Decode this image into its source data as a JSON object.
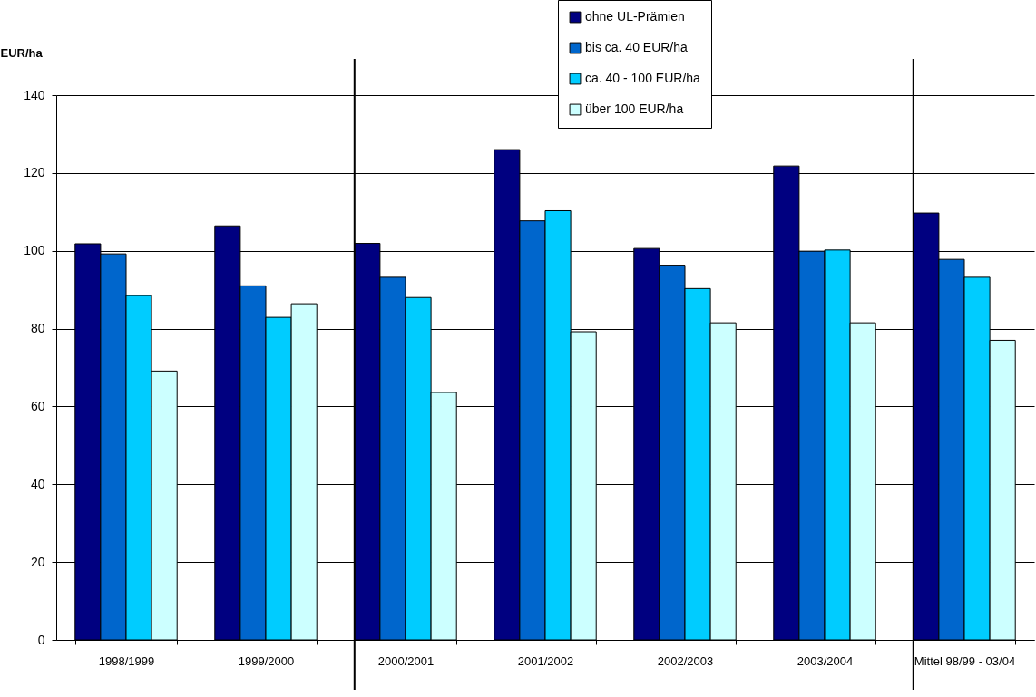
{
  "chart_data": {
    "type": "bar",
    "ylabel": "EUR/ha",
    "categories": [
      "1998/1999",
      "1999/2000",
      "2000/2001",
      "2001/2002",
      "2002/2003",
      "2003/2004",
      "Mittel 98/99 - 03/04"
    ],
    "series": [
      {
        "name": "ohne UL-Prämien",
        "color": "#000080",
        "values": [
          101.8,
          106.4,
          101.9,
          126.0,
          100.6,
          121.8,
          109.7
        ]
      },
      {
        "name": "bis ca. 40 EUR/ha",
        "color": "#0066cc",
        "values": [
          99.2,
          91.0,
          93.2,
          107.7,
          96.3,
          99.9,
          97.8
        ]
      },
      {
        "name": "ca. 40 - 100 EUR/ha",
        "color": "#00ccff",
        "values": [
          88.5,
          82.9,
          88.0,
          110.3,
          90.3,
          100.2,
          93.2
        ]
      },
      {
        "name": "über 100 EUR/ha",
        "color": "#ccffff",
        "values": [
          69.1,
          86.4,
          63.6,
          79.2,
          81.5,
          81.5,
          77.0
        ]
      }
    ],
    "ylim": [
      0,
      140
    ],
    "yticks": [
      0,
      20,
      40,
      60,
      80,
      100,
      120,
      140
    ],
    "grid": "y",
    "legend": "top right",
    "ref_lines": [
      {
        "axis": "x",
        "value": "2000/2001"
      },
      {
        "axis": "x",
        "value": "Mittel 98/99 - 03/04"
      }
    ]
  }
}
